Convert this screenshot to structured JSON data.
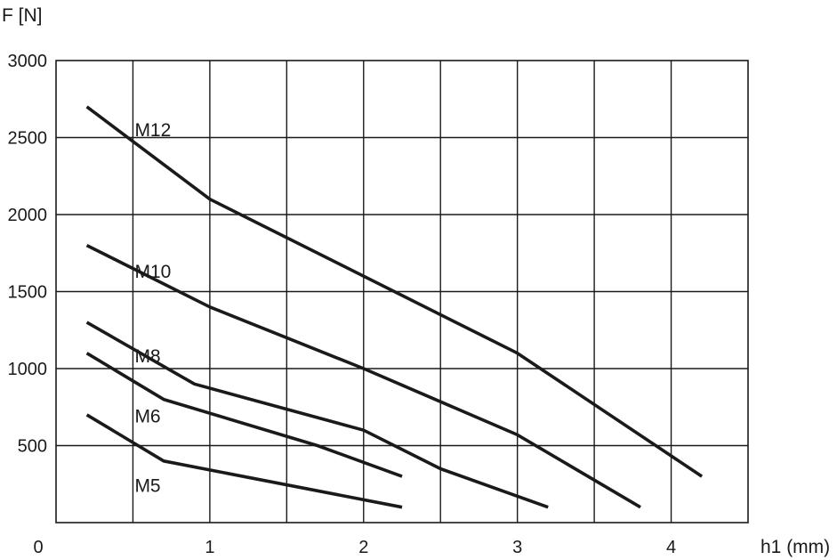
{
  "chart_data": {
    "type": "line",
    "ylabel": "F [N]",
    "xlabel": "h1 (mm)",
    "origin_label": "0",
    "xlim": [
      0,
      4.5
    ],
    "ylim": [
      0,
      3000
    ],
    "grid": true,
    "xticks": [
      {
        "value": 1,
        "label": "1"
      },
      {
        "value": 2,
        "label": "2"
      },
      {
        "value": 3,
        "label": "3"
      },
      {
        "value": 4,
        "label": "4"
      }
    ],
    "yticks": [
      {
        "value": 500,
        "label": "500"
      },
      {
        "value": 1000,
        "label": "1000"
      },
      {
        "value": 1500,
        "label": "1500"
      },
      {
        "value": 2000,
        "label": "2000"
      },
      {
        "value": 2500,
        "label": "2500"
      },
      {
        "value": 3000,
        "label": "3000"
      }
    ],
    "series": [
      {
        "name": "M12",
        "points": [
          [
            0.2,
            2700
          ],
          [
            1.0,
            2100
          ],
          [
            3.0,
            1100
          ],
          [
            4.2,
            300
          ]
        ]
      },
      {
        "name": "M10",
        "points": [
          [
            0.2,
            1800
          ],
          [
            1.0,
            1400
          ],
          [
            2.0,
            1000
          ],
          [
            3.0,
            570
          ],
          [
            3.8,
            100
          ]
        ]
      },
      {
        "name": "M8",
        "points": [
          [
            0.2,
            1300
          ],
          [
            0.9,
            900
          ],
          [
            2.0,
            600
          ],
          [
            2.5,
            350
          ],
          [
            3.2,
            100
          ]
        ]
      },
      {
        "name": "M6",
        "points": [
          [
            0.2,
            1100
          ],
          [
            0.7,
            800
          ],
          [
            1.7,
            500
          ],
          [
            2.25,
            300
          ]
        ]
      },
      {
        "name": "M5",
        "points": [
          [
            0.2,
            700
          ],
          [
            0.7,
            400
          ],
          [
            2.25,
            100
          ]
        ]
      }
    ],
    "series_label_anchors": [
      {
        "name": "M12",
        "x": 0.5,
        "y": 2550
      },
      {
        "name": "M10",
        "x": 0.5,
        "y": 1630
      },
      {
        "name": "M8",
        "x": 0.5,
        "y": 1080
      },
      {
        "name": "M6",
        "x": 0.5,
        "y": 690
      },
      {
        "name": "M5",
        "x": 0.5,
        "y": 240
      }
    ]
  }
}
